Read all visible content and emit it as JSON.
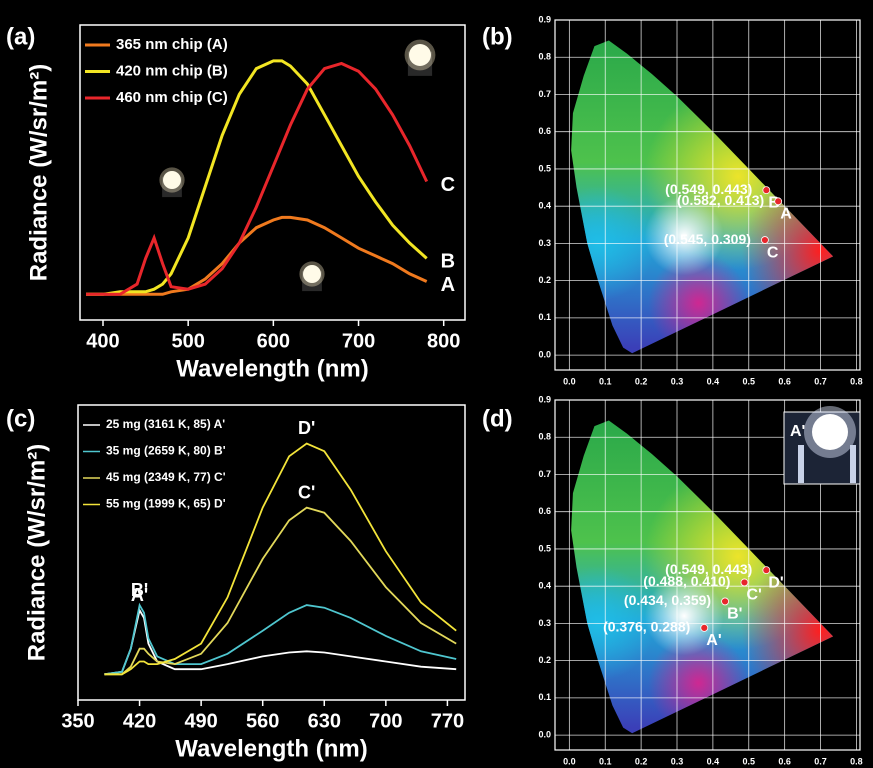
{
  "chart_data": [
    {
      "type": "line",
      "panel_label": "(a)",
      "xlabel": "Wavelength (nm)",
      "ylabel": "Radiance (W/sr/m²)",
      "xlim": [
        373,
        825
      ],
      "xticks": [
        400,
        500,
        600,
        700,
        800
      ],
      "ylim": [
        -0.1,
        1.05
      ],
      "x": [
        380,
        400,
        420,
        440,
        450,
        460,
        470,
        480,
        500,
        520,
        540,
        560,
        580,
        600,
        610,
        620,
        640,
        660,
        680,
        700,
        720,
        740,
        760,
        780
      ],
      "series": [
        {
          "name": "365 nm chip (A)",
          "tag": "A",
          "color": "#f07a1e",
          "values": [
            0,
            0,
            0,
            0,
            0,
            0,
            0,
            0.01,
            0.02,
            0.06,
            0.12,
            0.2,
            0.26,
            0.29,
            0.3,
            0.3,
            0.29,
            0.26,
            0.22,
            0.18,
            0.15,
            0.12,
            0.08,
            0.05
          ]
        },
        {
          "name": "420 nm chip (B)",
          "tag": "B",
          "color": "#f2e523",
          "values": [
            0,
            0,
            0.01,
            0.01,
            0.01,
            0.02,
            0.04,
            0.08,
            0.22,
            0.42,
            0.62,
            0.78,
            0.88,
            0.91,
            0.91,
            0.89,
            0.82,
            0.7,
            0.58,
            0.46,
            0.36,
            0.27,
            0.2,
            0.14
          ]
        },
        {
          "name": "460 nm chip (C)",
          "tag": "C",
          "color": "#e8262b",
          "values": [
            0,
            0,
            0,
            0.04,
            0.14,
            0.22,
            0.12,
            0.03,
            0.02,
            0.04,
            0.1,
            0.2,
            0.34,
            0.5,
            0.58,
            0.66,
            0.8,
            0.88,
            0.9,
            0.87,
            0.8,
            0.7,
            0.58,
            0.44
          ]
        }
      ]
    },
    {
      "type": "scatter",
      "panel_label": "(b)",
      "xlim": [
        -0.04,
        0.81
      ],
      "ylim": [
        -0.04,
        0.9
      ],
      "xticks": [
        {
          "value": 0,
          "label": "0.0"
        },
        0.1,
        0.2,
        0.3,
        0.4,
        0.5,
        0.6,
        0.7,
        0.8
      ],
      "yticks": [
        {
          "value": 0,
          "label": "0.0"
        },
        0.1,
        0.2,
        0.3,
        0.4,
        0.5,
        0.6,
        0.7,
        0.8,
        0.9
      ],
      "grid": true,
      "color": "#e8262b",
      "x": [
        0.549,
        0.582,
        0.545
      ],
      "values": [
        0.443,
        0.413,
        0.309
      ],
      "value_labels": [
        "(0.549, 0.443)",
        "(0.582, 0.413)",
        "(0.545, 0.309)"
      ],
      "point_labels": [
        "B",
        "A",
        "C"
      ]
    },
    {
      "type": "line",
      "panel_label": "(c)",
      "xlabel": "Wavelength (nm)",
      "ylabel": "Radiance (W/sr/m²)",
      "xlim": [
        350,
        790
      ],
      "xticks": [
        350,
        420,
        490,
        560,
        630,
        700,
        770
      ],
      "ylim": [
        -0.1,
        1.05
      ],
      "x": [
        380,
        400,
        410,
        420,
        425,
        430,
        440,
        460,
        490,
        520,
        560,
        590,
        610,
        630,
        660,
        700,
        740,
        780
      ],
      "series": [
        {
          "name": "25 mg (3161 K, 85) A'",
          "tag": "A'",
          "color": "#ffffff",
          "values": [
            0,
            0.01,
            0.1,
            0.25,
            0.22,
            0.12,
            0.05,
            0.02,
            0.02,
            0.04,
            0.07,
            0.085,
            0.09,
            0.085,
            0.07,
            0.05,
            0.03,
            0.02
          ]
        },
        {
          "name": "35 mg (2659 K, 80) B'",
          "tag": "B'",
          "color": "#4fc6cf",
          "values": [
            0,
            0.01,
            0.1,
            0.27,
            0.24,
            0.14,
            0.07,
            0.04,
            0.04,
            0.08,
            0.17,
            0.24,
            0.27,
            0.26,
            0.22,
            0.15,
            0.09,
            0.06
          ]
        },
        {
          "name": "45 mg (2349 K, 77) C'",
          "tag": "C'",
          "color": "#e2d85a",
          "values": [
            0,
            0,
            0.03,
            0.1,
            0.1,
            0.08,
            0.05,
            0.04,
            0.08,
            0.2,
            0.45,
            0.6,
            0.65,
            0.63,
            0.52,
            0.34,
            0.2,
            0.12
          ]
        },
        {
          "name": "55 mg (1999 K, 65) D'",
          "tag": "D'",
          "color": "#f3e43a",
          "values": [
            0,
            0,
            0.02,
            0.05,
            0.05,
            0.04,
            0.04,
            0.06,
            0.12,
            0.3,
            0.65,
            0.85,
            0.9,
            0.87,
            0.72,
            0.48,
            0.28,
            0.17
          ]
        }
      ]
    },
    {
      "type": "scatter",
      "panel_label": "(d)",
      "xlim": [
        -0.04,
        0.81
      ],
      "ylim": [
        -0.04,
        0.9
      ],
      "xticks": [
        {
          "value": 0,
          "label": "0.0"
        },
        0.1,
        0.2,
        0.3,
        0.4,
        0.5,
        0.6,
        0.7,
        0.8
      ],
      "yticks": [
        {
          "value": 0,
          "label": "0.0"
        },
        0.1,
        0.2,
        0.3,
        0.4,
        0.5,
        0.6,
        0.7,
        0.8,
        0.9
      ],
      "grid": true,
      "color": "#e8262b",
      "inset_label": "A'",
      "x": [
        0.549,
        0.488,
        0.434,
        0.376
      ],
      "values": [
        0.443,
        0.41,
        0.359,
        0.288
      ],
      "value_labels": [
        "(0.549, 0.443)",
        "(0.488, 0.410)",
        "(0.434, 0.359)",
        "(0.376, 0.288)"
      ],
      "point_labels": [
        "D'",
        "C'",
        "B'",
        "A'"
      ]
    }
  ]
}
